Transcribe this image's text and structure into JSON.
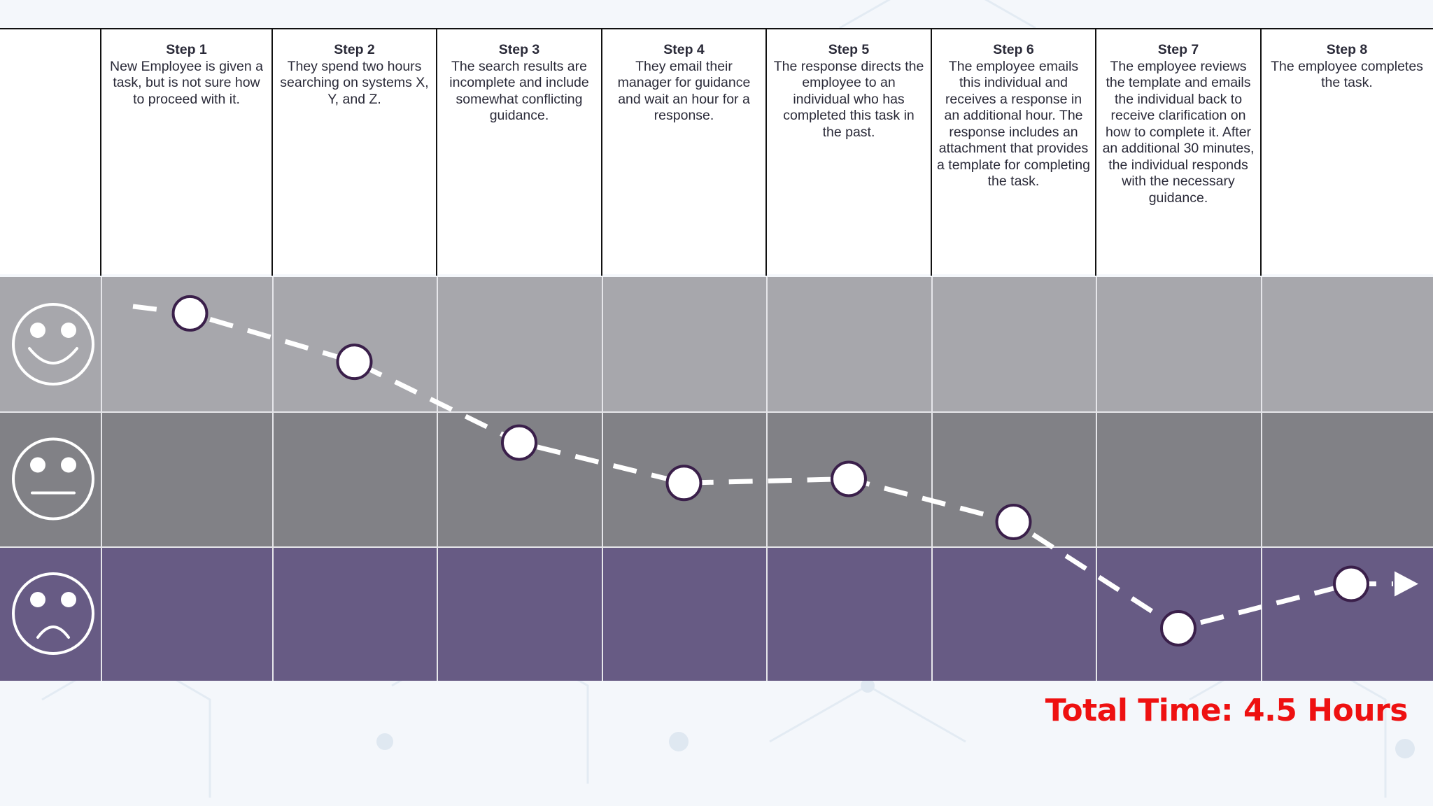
{
  "steps": [
    {
      "title": "Step 1",
      "description": "New Employee is given a task, but is not sure how to proceed with it."
    },
    {
      "title": "Step 2",
      "description": "They spend two hours searching on systems X, Y, and Z."
    },
    {
      "title": "Step 3",
      "description": "The search results are incomplete and include somewhat conflicting guidance."
    },
    {
      "title": "Step 4",
      "description": "They email their manager for guidance and wait an hour for a response."
    },
    {
      "title": "Step 5",
      "description": "The response directs the employee to an individual who has completed this task in the past."
    },
    {
      "title": "Step 6",
      "description": "The employee emails this individual and receives a response in an additional hour. The response includes an attachment that provides a template for completing the task."
    },
    {
      "title": "Step 7",
      "description": "The employee reviews the template and emails the individual back to receive clarification on how to complete it. After an additional 30 minutes, the individual responds with the necessary guidance."
    },
    {
      "title": "Step 8",
      "description": "The employee completes the task."
    }
  ],
  "emotion_rows": [
    {
      "mood": "happy",
      "icon": "happy-face-icon",
      "color": "#a7a7ac"
    },
    {
      "mood": "neutral",
      "icon": "neutral-face-icon",
      "color": "#818186"
    },
    {
      "mood": "sad",
      "icon": "sad-face-icon",
      "color": "#675b84"
    }
  ],
  "sentiment_scale": "Sentiment on a 0 (very unhappy) to 3 (very happy) scale",
  "journey_points": [
    {
      "step": "Step 1",
      "sentiment": 2.73
    },
    {
      "step": "Step 2",
      "sentiment": 2.37
    },
    {
      "step": "Step 3",
      "sentiment": 1.77
    },
    {
      "step": "Step 4",
      "sentiment": 1.47
    },
    {
      "step": "Step 5",
      "sentiment": 1.5
    },
    {
      "step": "Step 6",
      "sentiment": 1.18
    },
    {
      "step": "Step 7",
      "sentiment": 0.39
    },
    {
      "step": "Step 8",
      "sentiment": 0.72
    }
  ],
  "colors": {
    "line": "#ffffff",
    "marker_stroke": "#3a1f4a",
    "total_text": "#ee1111",
    "header_text": "#2a2a38"
  },
  "total_time_label": "Total Time: 4.5 Hours"
}
